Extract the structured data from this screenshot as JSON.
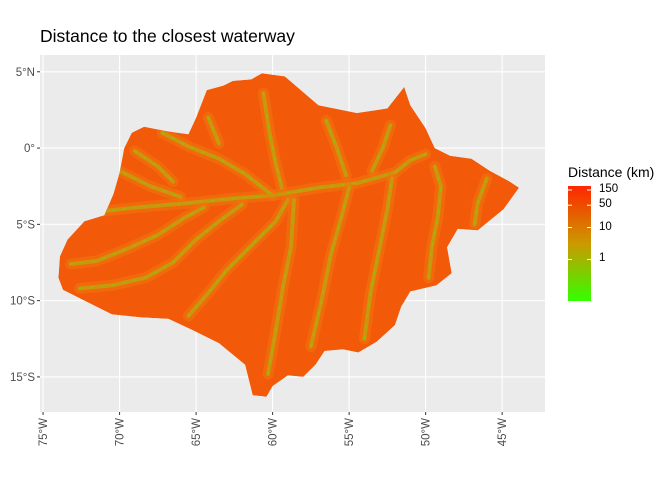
{
  "title": "Distance to the closest waterway",
  "colors": {
    "panel": "#ebebeb",
    "grid_major": "#ffffff",
    "gradient_low": "#33ff00",
    "gradient_mid": "#cc9900",
    "gradient_high": "#ff2600",
    "fill_base": "#f25a0a",
    "river": "#c9960e"
  },
  "chart_data": {
    "type": "heatmap",
    "title": "Distance to the closest waterway",
    "xlabel": "",
    "ylabel": "",
    "x_ticks": [
      {
        "value": -75,
        "label": "75°W"
      },
      {
        "value": -70,
        "label": "70°W"
      },
      {
        "value": -65,
        "label": "65°W"
      },
      {
        "value": -60,
        "label": "60°W"
      },
      {
        "value": -55,
        "label": "55°W"
      },
      {
        "value": -50,
        "label": "50°W"
      },
      {
        "value": -45,
        "label": "45°W"
      }
    ],
    "y_ticks": [
      {
        "value": 5,
        "label": "5°N"
      },
      {
        "value": 0,
        "label": "0°"
      },
      {
        "value": -5,
        "label": "5°S"
      },
      {
        "value": -10,
        "label": "10°S"
      },
      {
        "value": -15,
        "label": "15°S"
      }
    ],
    "xlim": [
      -75.2,
      -42.2
    ],
    "ylim": [
      -17.3,
      6.1
    ],
    "legend": {
      "title": "Distance (km)",
      "placement": "right",
      "scale": "log",
      "labels": [
        {
          "value": 150,
          "label": "150"
        },
        {
          "value": 50,
          "label": "50"
        },
        {
          "value": 10,
          "label": "10"
        },
        {
          "value": 1,
          "label": "1"
        }
      ]
    },
    "region_outline": [
      [
        -60.7,
        4.9
      ],
      [
        -59.2,
        4.7
      ],
      [
        -57.0,
        2.8
      ],
      [
        -54.5,
        2.3
      ],
      [
        -52.5,
        2.6
      ],
      [
        -51.4,
        4.0
      ],
      [
        -51.0,
        2.8
      ],
      [
        -50.0,
        1.3
      ],
      [
        -49.4,
        0.0
      ],
      [
        -48.4,
        -0.5
      ],
      [
        -47.0,
        -0.7
      ],
      [
        -45.8,
        -1.5
      ],
      [
        -44.5,
        -2.2
      ],
      [
        -43.9,
        -2.6
      ],
      [
        -44.9,
        -4.0
      ],
      [
        -46.6,
        -5.4
      ],
      [
        -47.9,
        -5.3
      ],
      [
        -48.6,
        -6.5
      ],
      [
        -48.3,
        -8.2
      ],
      [
        -49.3,
        -9.0
      ],
      [
        -51.0,
        -9.4
      ],
      [
        -51.6,
        -10.4
      ],
      [
        -52.0,
        -11.6
      ],
      [
        -53.2,
        -12.7
      ],
      [
        -54.4,
        -13.4
      ],
      [
        -55.4,
        -13.2
      ],
      [
        -56.6,
        -13.3
      ],
      [
        -57.2,
        -14.2
      ],
      [
        -58.0,
        -15.0
      ],
      [
        -59.0,
        -14.9
      ],
      [
        -60.0,
        -15.6
      ],
      [
        -60.4,
        -16.3
      ],
      [
        -61.3,
        -16.2
      ],
      [
        -61.8,
        -14.2
      ],
      [
        -63.5,
        -12.8
      ],
      [
        -65.3,
        -11.9
      ],
      [
        -66.8,
        -11.2
      ],
      [
        -68.6,
        -11.1
      ],
      [
        -70.5,
        -10.9
      ],
      [
        -72.3,
        -10.0
      ],
      [
        -73.7,
        -9.3
      ],
      [
        -74.0,
        -8.5
      ],
      [
        -73.9,
        -7.1
      ],
      [
        -73.4,
        -6.0
      ],
      [
        -72.3,
        -4.8
      ],
      [
        -71.0,
        -4.4
      ],
      [
        -70.4,
        -3.0
      ],
      [
        -70.0,
        -1.6
      ],
      [
        -69.7,
        0.0
      ],
      [
        -69.2,
        1.0
      ],
      [
        -68.4,
        1.4
      ],
      [
        -66.9,
        1.1
      ],
      [
        -65.5,
        0.9
      ],
      [
        -65.0,
        2.0
      ],
      [
        -64.3,
        3.8
      ],
      [
        -63.2,
        4.1
      ],
      [
        -62.6,
        4.4
      ],
      [
        -61.4,
        4.5
      ],
      [
        -60.7,
        4.9
      ]
    ],
    "waterways": [
      [
        [
          -72.6,
          -4.3
        ],
        [
          -69.0,
          -3.9
        ],
        [
          -65.5,
          -3.6
        ],
        [
          -62.5,
          -3.3
        ],
        [
          -60.0,
          -3.1
        ],
        [
          -57.0,
          -2.6
        ],
        [
          -54.5,
          -2.3
        ],
        [
          -52.0,
          -1.6
        ],
        [
          -51.0,
          -0.8
        ],
        [
          -50.0,
          -0.4
        ]
      ],
      [
        [
          -67.2,
          1.0
        ],
        [
          -65.5,
          0.1
        ],
        [
          -63.5,
          -0.7
        ],
        [
          -61.8,
          -1.7
        ],
        [
          -60.0,
          -3.1
        ]
      ],
      [
        [
          -70.4,
          -1.3
        ],
        [
          -68.0,
          -2.5
        ],
        [
          -66.0,
          -3.2
        ]
      ],
      [
        [
          -73.2,
          -7.6
        ],
        [
          -71.5,
          -7.4
        ],
        [
          -69.5,
          -6.6
        ],
        [
          -67.5,
          -5.7
        ],
        [
          -65.8,
          -4.6
        ],
        [
          -64.5,
          -3.9
        ]
      ],
      [
        [
          -72.6,
          -9.2
        ],
        [
          -70.5,
          -9.0
        ],
        [
          -68.3,
          -8.5
        ],
        [
          -66.5,
          -7.5
        ],
        [
          -65.0,
          -6.0
        ],
        [
          -63.5,
          -4.8
        ],
        [
          -62.0,
          -3.7
        ]
      ],
      [
        [
          -65.5,
          -11.0
        ],
        [
          -64.2,
          -9.5
        ],
        [
          -63.0,
          -8.0
        ],
        [
          -61.5,
          -6.5
        ],
        [
          -59.8,
          -4.8
        ],
        [
          -59.0,
          -3.4
        ]
      ],
      [
        [
          -60.3,
          -14.8
        ],
        [
          -59.8,
          -12.0
        ],
        [
          -59.3,
          -9.0
        ],
        [
          -58.8,
          -6.5
        ],
        [
          -58.6,
          -3.4
        ]
      ],
      [
        [
          -57.5,
          -13.0
        ],
        [
          -56.8,
          -10.0
        ],
        [
          -56.2,
          -7.0
        ],
        [
          -55.5,
          -4.5
        ],
        [
          -55.0,
          -2.6
        ]
      ],
      [
        [
          -54.0,
          -12.5
        ],
        [
          -53.6,
          -9.5
        ],
        [
          -53.0,
          -6.5
        ],
        [
          -52.5,
          -4.0
        ],
        [
          -52.2,
          -2.0
        ]
      ],
      [
        [
          -49.8,
          -8.5
        ],
        [
          -49.6,
          -6.5
        ],
        [
          -49.2,
          -4.5
        ],
        [
          -49.0,
          -2.5
        ],
        [
          -49.4,
          -1.2
        ]
      ],
      [
        [
          -46.8,
          -5.0
        ],
        [
          -46.6,
          -3.6
        ],
        [
          -46.0,
          -2.0
        ]
      ],
      [
        [
          -60.6,
          3.6
        ],
        [
          -60.2,
          1.0
        ],
        [
          -59.8,
          -1.0
        ],
        [
          -59.4,
          -2.6
        ]
      ],
      [
        [
          -56.5,
          1.8
        ],
        [
          -55.8,
          0.0
        ],
        [
          -55.2,
          -1.8
        ]
      ],
      [
        [
          -52.3,
          1.5
        ],
        [
          -52.8,
          0.0
        ],
        [
          -53.5,
          -1.5
        ]
      ],
      [
        [
          -64.2,
          2.0
        ],
        [
          -63.5,
          0.3
        ]
      ],
      [
        [
          -69.0,
          -0.2
        ],
        [
          -67.5,
          -1.2
        ],
        [
          -66.5,
          -2.2
        ]
      ]
    ]
  }
}
